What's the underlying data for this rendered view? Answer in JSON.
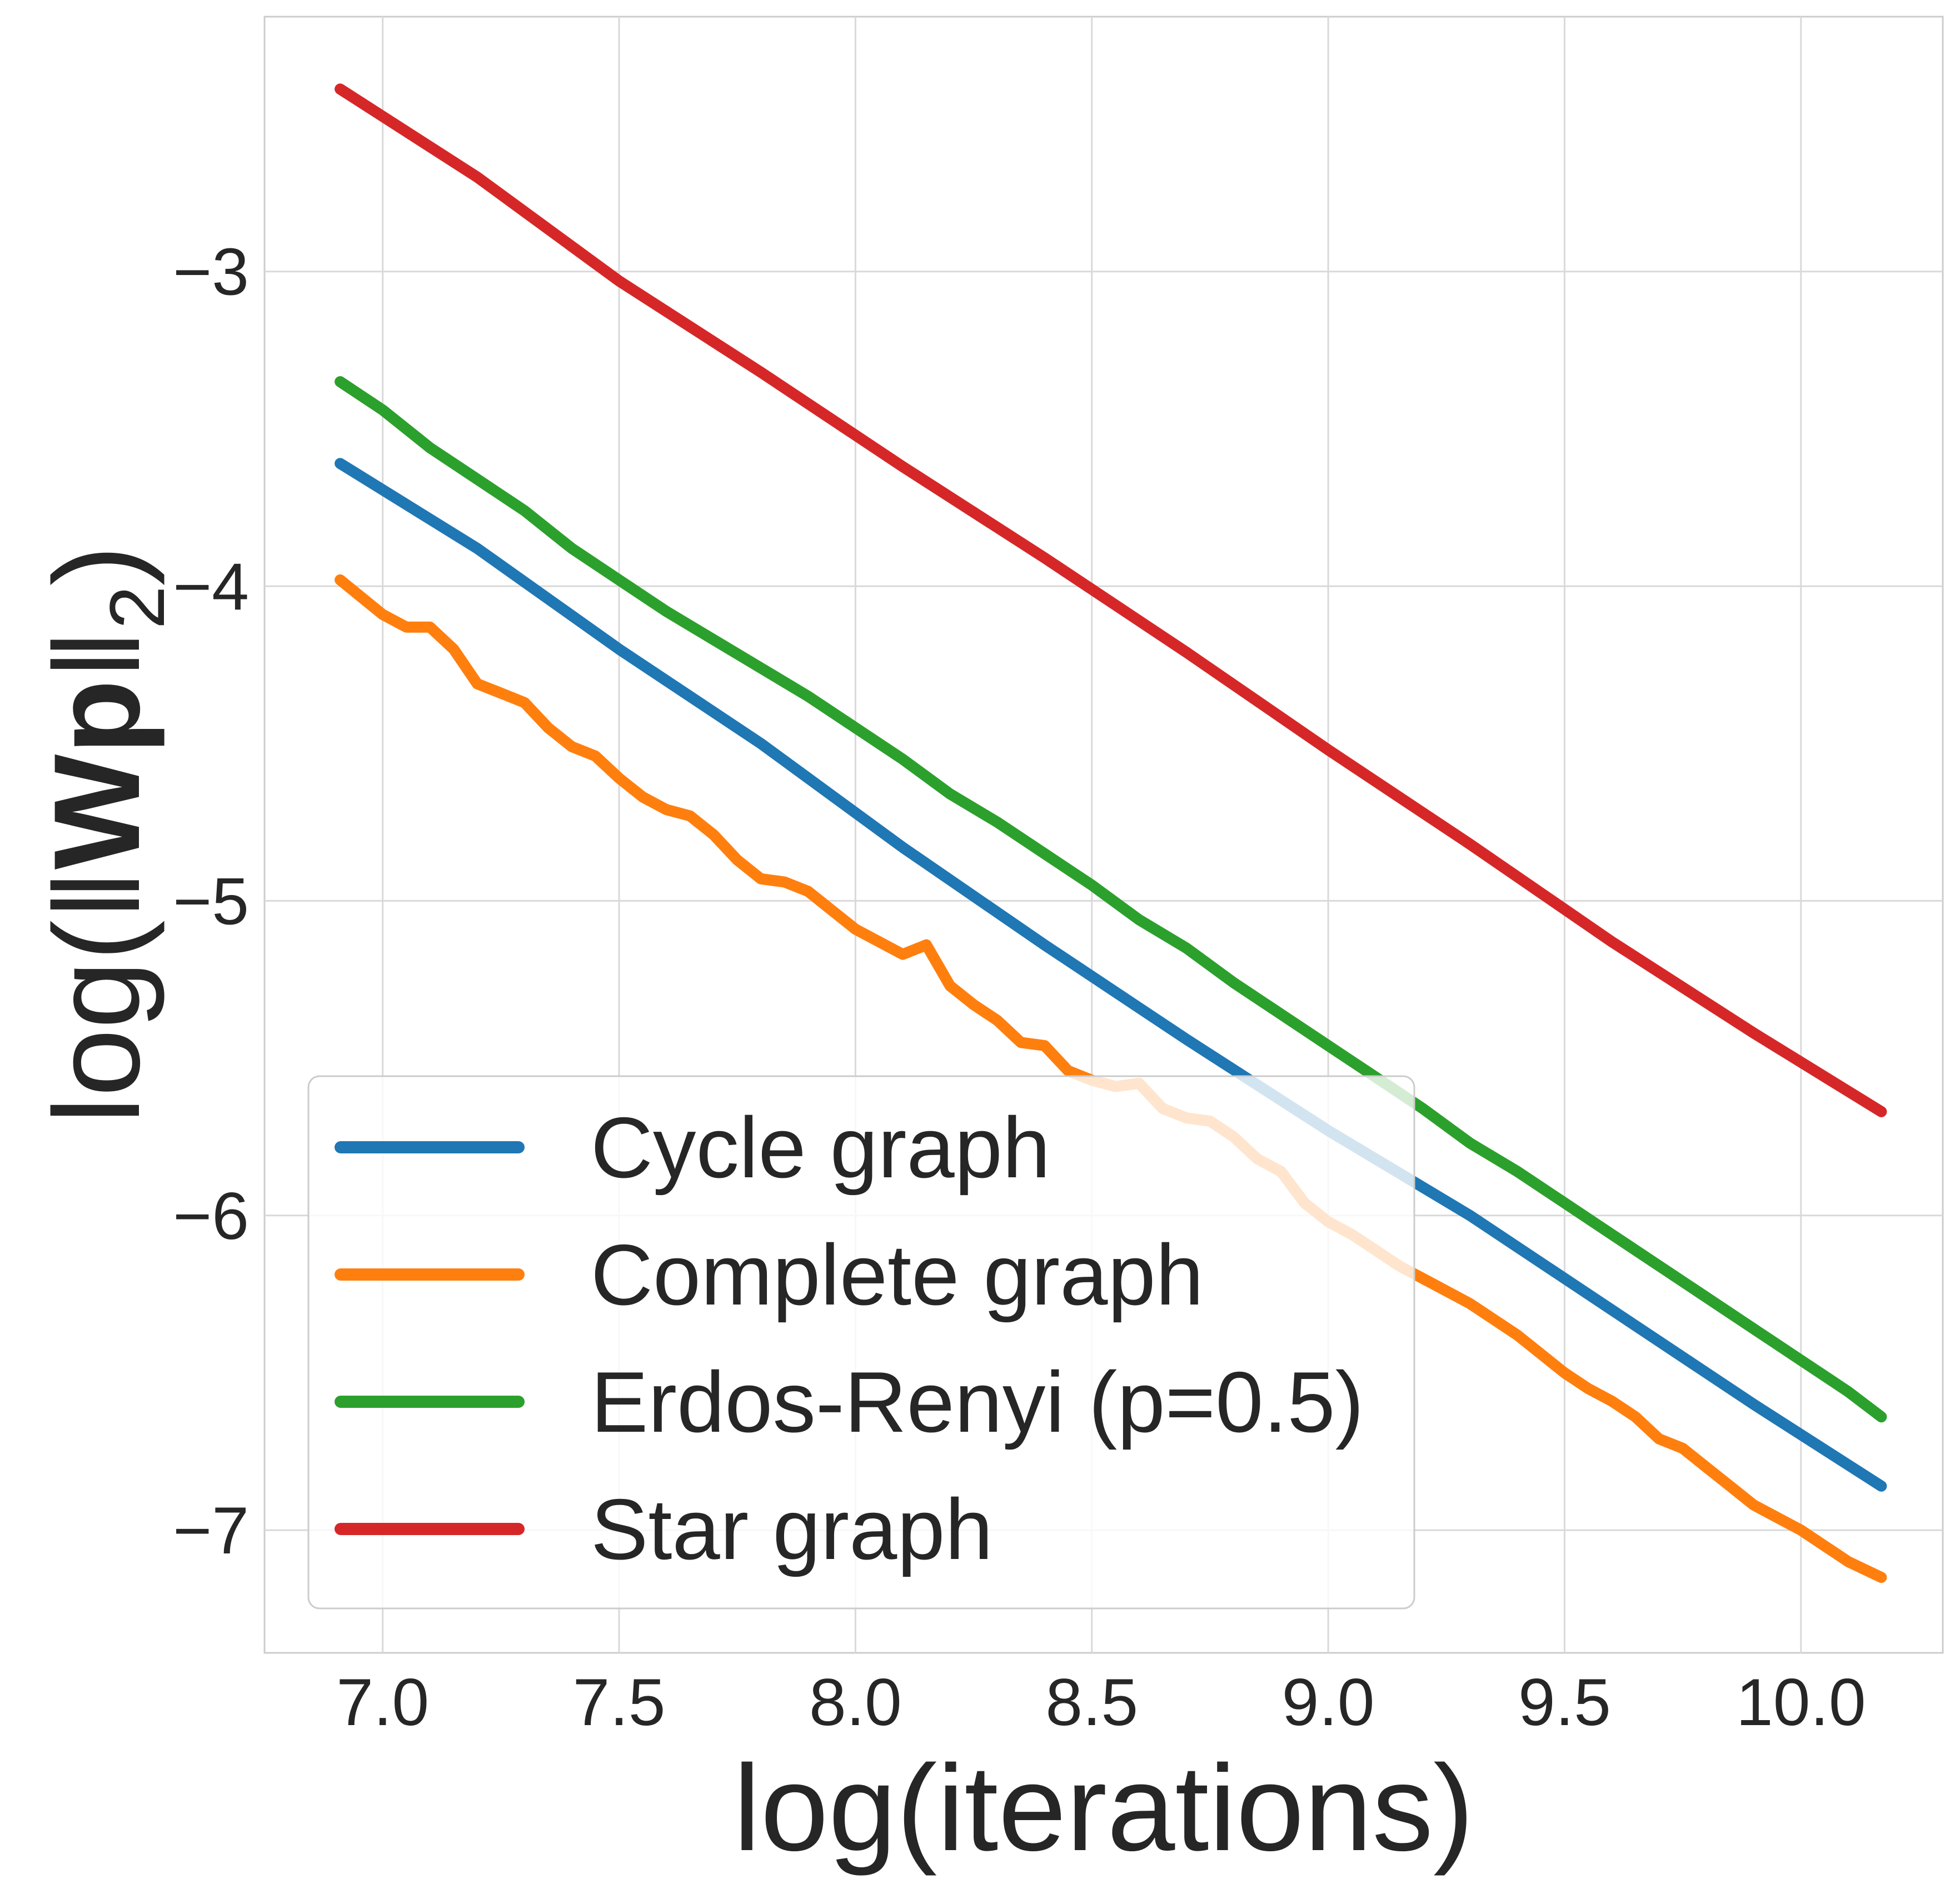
{
  "chart_data": {
    "type": "line",
    "title": "",
    "xlabel": "log(iterations)",
    "ylabel_parts": {
      "prefix": "log(‖",
      "bold": "Wp",
      "suffix": "‖",
      "subscript": "2",
      "close": ")"
    },
    "xlim": [
      6.75,
      10.3
    ],
    "ylim": [
      -7.39,
      -2.19
    ],
    "xticks": [
      7.0,
      7.5,
      8.0,
      8.5,
      9.0,
      9.5,
      10.0
    ],
    "xtick_labels": [
      "7.0",
      "7.5",
      "8.0",
      "8.5",
      "9.0",
      "9.5",
      "10.0"
    ],
    "yticks": [
      -3,
      -4,
      -5,
      -6,
      -7
    ],
    "ytick_labels": [
      "−3",
      "−4",
      "−5",
      "−6",
      "−7"
    ],
    "grid": true,
    "legend_position": "lower-left",
    "series": [
      {
        "name": "Cycle graph",
        "color": "#1f77b4",
        "x": [
          6.91,
          7.2,
          7.5,
          7.8,
          8.1,
          8.4,
          8.7,
          9.0,
          9.3,
          9.6,
          9.9,
          10.17
        ],
        "y": [
          -3.61,
          -3.88,
          -4.2,
          -4.5,
          -4.83,
          -5.14,
          -5.44,
          -5.73,
          -6.0,
          -6.3,
          -6.6,
          -6.86
        ]
      },
      {
        "name": "Complete graph",
        "color": "#ff7f0e",
        "x": [
          6.91,
          7.0,
          7.05,
          7.1,
          7.15,
          7.2,
          7.25,
          7.3,
          7.35,
          7.4,
          7.45,
          7.5,
          7.55,
          7.6,
          7.65,
          7.7,
          7.75,
          7.8,
          7.85,
          7.9,
          7.95,
          8.0,
          8.05,
          8.1,
          8.15,
          8.2,
          8.25,
          8.3,
          8.35,
          8.4,
          8.45,
          8.5,
          8.55,
          8.6,
          8.65,
          8.7,
          8.75,
          8.8,
          8.85,
          8.9,
          8.95,
          9.0,
          9.05,
          9.1,
          9.15,
          9.2,
          9.25,
          9.3,
          9.35,
          9.4,
          9.45,
          9.5,
          9.55,
          9.6,
          9.65,
          9.7,
          9.75,
          9.8,
          9.85,
          9.9,
          9.95,
          10.0,
          10.05,
          10.1,
          10.17
        ],
        "y": [
          -3.98,
          -4.09,
          -4.13,
          -4.13,
          -4.2,
          -4.31,
          -4.34,
          -4.37,
          -4.45,
          -4.51,
          -4.54,
          -4.61,
          -4.67,
          -4.71,
          -4.73,
          -4.79,
          -4.87,
          -4.93,
          -4.94,
          -4.97,
          -5.03,
          -5.09,
          -5.13,
          -5.17,
          -5.14,
          -5.27,
          -5.33,
          -5.38,
          -5.45,
          -5.46,
          -5.54,
          -5.57,
          -5.59,
          -5.58,
          -5.66,
          -5.69,
          -5.7,
          -5.75,
          -5.82,
          -5.86,
          -5.96,
          -6.02,
          -6.06,
          -6.11,
          -6.16,
          -6.2,
          -6.24,
          -6.28,
          -6.33,
          -6.38,
          -6.44,
          -6.5,
          -6.55,
          -6.59,
          -6.64,
          -6.71,
          -6.74,
          -6.8,
          -6.86,
          -6.92,
          -6.96,
          -7.0,
          -7.05,
          -7.1,
          -7.15
        ]
      },
      {
        "name": "Erdos-Renyi (p=0.5)",
        "color": "#2ca02c",
        "x": [
          6.91,
          7.0,
          7.1,
          7.2,
          7.3,
          7.4,
          7.5,
          7.6,
          7.7,
          7.8,
          7.9,
          8.0,
          8.1,
          8.2,
          8.3,
          8.4,
          8.5,
          8.6,
          8.7,
          8.8,
          8.9,
          9.0,
          9.1,
          9.2,
          9.3,
          9.4,
          9.5,
          9.6,
          9.7,
          9.8,
          9.9,
          10.0,
          10.1,
          10.17
        ],
        "y": [
          -3.35,
          -3.44,
          -3.56,
          -3.66,
          -3.76,
          -3.88,
          -3.98,
          -4.08,
          -4.17,
          -4.26,
          -4.35,
          -4.45,
          -4.55,
          -4.66,
          -4.75,
          -4.85,
          -4.95,
          -5.06,
          -5.15,
          -5.26,
          -5.36,
          -5.46,
          -5.56,
          -5.66,
          -5.77,
          -5.86,
          -5.96,
          -6.06,
          -6.16,
          -6.26,
          -6.36,
          -6.46,
          -6.56,
          -6.64
        ]
      },
      {
        "name": "Star graph",
        "color": "#d62728",
        "x": [
          6.91,
          7.2,
          7.5,
          7.8,
          8.1,
          8.4,
          8.7,
          9.0,
          9.3,
          9.6,
          9.9,
          10.17
        ],
        "y": [
          -2.42,
          -2.7,
          -3.03,
          -3.32,
          -3.62,
          -3.91,
          -4.21,
          -4.52,
          -4.82,
          -5.13,
          -5.42,
          -5.67
        ]
      }
    ]
  }
}
